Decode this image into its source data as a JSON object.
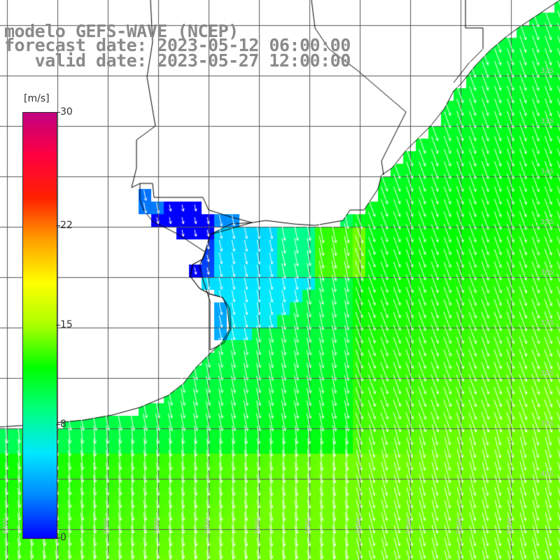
{
  "title": {
    "line1": "modelo GEFS-WAVE (NCEP)",
    "line2": "forecast date: 2023-05-12 06:00:00",
    "line3": "   valid date: 2023-05-27 12:00:00"
  },
  "colorbar": {
    "unit": "[m/s]",
    "range": [
      0,
      30
    ],
    "ticks": [
      {
        "value": 30,
        "label": "30"
      },
      {
        "value": 22,
        "label": "22"
      },
      {
        "value": 15,
        "label": "15"
      },
      {
        "value": 8,
        "label": "8"
      },
      {
        "value": 0,
        "label": "0"
      }
    ],
    "colors": [
      "#0000ff",
      "#0088ff",
      "#00e8ff",
      "#00ff80",
      "#00ff00",
      "#aaff00",
      "#ffff00",
      "#ffa000",
      "#ff2000",
      "#ff0040",
      "#c00080"
    ]
  },
  "lat_labels": [
    "32S",
    "33S",
    "34S",
    "35S",
    "36S",
    "37S",
    "38S",
    "39S",
    "40S"
  ],
  "lon_labels": [
    "61W",
    "60W",
    "59W",
    "58W",
    "57W",
    "56W",
    "55W",
    "54W",
    "53W",
    "52W",
    "51W"
  ],
  "colors": {
    "land": "#ffffff",
    "coast": "#000000",
    "grid": "#555555",
    "arrow": "#ffffff",
    "title": "#8a8a8a"
  }
}
